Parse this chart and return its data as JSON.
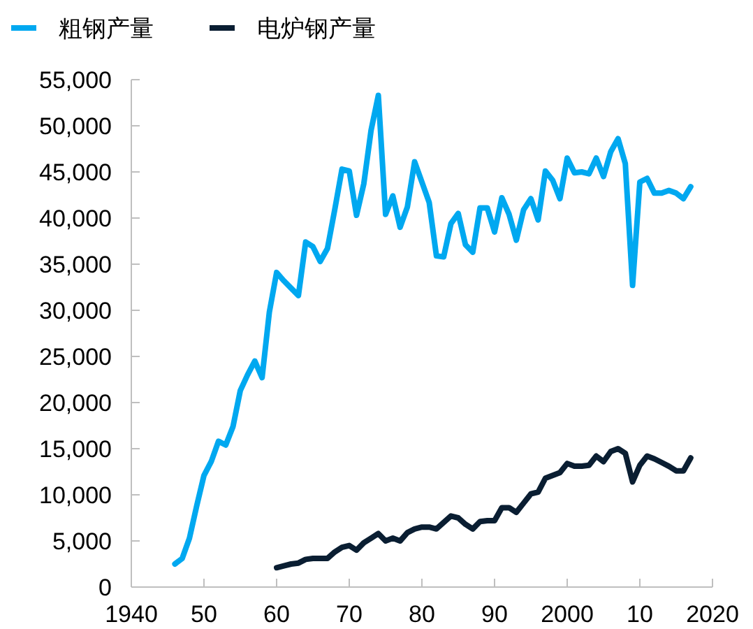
{
  "chart_data": {
    "type": "line",
    "legend": "top left",
    "grid": false,
    "marker": "none",
    "line_style": "solid",
    "xlim": [
      1940,
      2020
    ],
    "ylim": [
      0,
      55000
    ],
    "xticks": [
      1940,
      {
        "value": 1950,
        "label": "50"
      },
      {
        "value": 1960,
        "label": "60"
      },
      {
        "value": 1970,
        "label": "70"
      },
      {
        "value": 1980,
        "label": "80"
      },
      {
        "value": 1990,
        "label": "90"
      },
      2000,
      {
        "value": 2010,
        "label": "10"
      },
      2020
    ],
    "yticks": [
      {
        "value": 0,
        "label": "0"
      },
      {
        "value": 5000,
        "label": "5,000"
      },
      {
        "value": 10000,
        "label": "10,000"
      },
      {
        "value": 15000,
        "label": "15,000"
      },
      {
        "value": 20000,
        "label": "20,000"
      },
      {
        "value": 25000,
        "label": "25,000"
      },
      {
        "value": 30000,
        "label": "30,000"
      },
      {
        "value": 35000,
        "label": "35,000"
      },
      {
        "value": 40000,
        "label": "40,000"
      },
      {
        "value": 45000,
        "label": "45,000"
      },
      {
        "value": 50000,
        "label": "50,000"
      },
      {
        "value": 55000,
        "label": "55,000"
      }
    ],
    "series": [
      {
        "name": "粗钢产量",
        "color": "#00a8f0",
        "x": [
          1946,
          1947,
          1948,
          1949,
          1950,
          1951,
          1952,
          1953,
          1954,
          1955,
          1956,
          1957,
          1958,
          1959,
          1960,
          1961,
          1962,
          1963,
          1964,
          1965,
          1966,
          1967,
          1968,
          1969,
          1970,
          1971,
          1972,
          1973,
          1974,
          1975,
          1976,
          1977,
          1978,
          1979,
          1980,
          1981,
          1982,
          1983,
          1984,
          1985,
          1986,
          1987,
          1988,
          1989,
          1990,
          1991,
          1992,
          1993,
          1994,
          1995,
          1996,
          1997,
          1998,
          1999,
          2000,
          2001,
          2002,
          2003,
          2004,
          2005,
          2006,
          2007,
          2008,
          2009,
          2010,
          2011,
          2012,
          2013,
          2014,
          2015,
          2016,
          2017
        ],
        "values": [
          2500,
          3100,
          5300,
          8800,
          12100,
          13600,
          15800,
          15400,
          17400,
          21300,
          23000,
          24500,
          22700,
          29800,
          34100,
          33200,
          32400,
          31600,
          37400,
          36900,
          35300,
          36700,
          40900,
          45300,
          45100,
          40300,
          43700,
          49500,
          53300,
          40400,
          42400,
          39000,
          41200,
          46100,
          43900,
          41700,
          35900,
          35800,
          39400,
          40500,
          37100,
          36300,
          41100,
          41100,
          38500,
          42200,
          40400,
          37600,
          40900,
          42100,
          39800,
          45100,
          44100,
          42100,
          46500,
          44900,
          45000,
          44800,
          46500,
          44500,
          47200,
          48600,
          45900,
          32700,
          43900,
          44300,
          42700,
          42700,
          43000,
          42700,
          42100,
          43400
        ]
      },
      {
        "name": "电炉钢产量",
        "color": "#0a1e32",
        "x": [
          1960,
          1961,
          1962,
          1963,
          1964,
          1965,
          1966,
          1967,
          1968,
          1969,
          1970,
          1971,
          1972,
          1973,
          1974,
          1975,
          1976,
          1977,
          1978,
          1979,
          1980,
          1981,
          1982,
          1983,
          1984,
          1985,
          1986,
          1987,
          1988,
          1989,
          1990,
          1991,
          1992,
          1993,
          1994,
          1995,
          1996,
          1997,
          1998,
          1999,
          2000,
          2001,
          2002,
          2003,
          2004,
          2005,
          2006,
          2007,
          2008,
          2009,
          2010,
          2011,
          2012,
          2013,
          2014,
          2015,
          2016,
          2017
        ],
        "values": [
          2100,
          2300,
          2500,
          2600,
          3000,
          3100,
          3100,
          3100,
          3800,
          4300,
          4500,
          4000,
          4800,
          5300,
          5800,
          5000,
          5300,
          5000,
          5900,
          6300,
          6500,
          6500,
          6300,
          7000,
          7700,
          7500,
          6800,
          6300,
          7100,
          7200,
          7200,
          8600,
          8600,
          8100,
          9100,
          10100,
          10300,
          11800,
          12100,
          12400,
          13400,
          13100,
          13100,
          13200,
          14200,
          13600,
          14700,
          15000,
          14500,
          11400,
          13200,
          14200,
          13900,
          13500,
          13100,
          12600,
          12600,
          14000
        ]
      }
    ]
  }
}
